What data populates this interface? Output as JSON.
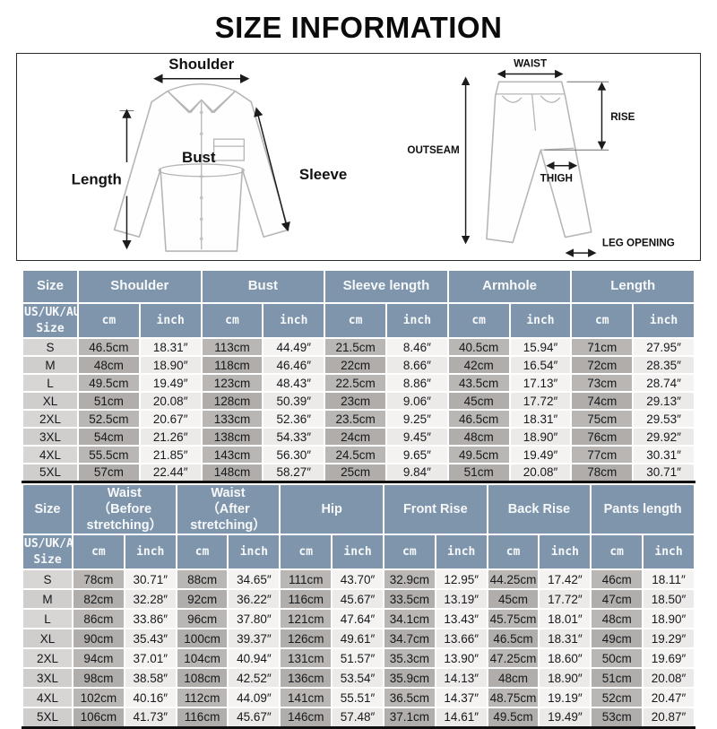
{
  "page": {
    "title": "SIZE INFORMATION"
  },
  "diagram": {
    "shirt": {
      "shoulder": "Shoulder",
      "length": "Length",
      "bust": "Bust",
      "sleeve": "Sleeve"
    },
    "pants": {
      "waist": "WAIST",
      "rise": "RISE",
      "outseam": "OUTSEAM",
      "thigh": "THIGH",
      "leg_opening": "LEG OPENING"
    }
  },
  "top_table": {
    "size_header": "Size",
    "size_subheader": "US/UK/AU Size",
    "unit_cm": "cm",
    "unit_inch": "inch",
    "groups": [
      "Shoulder",
      "Bust",
      "Sleeve length",
      "Armhole",
      "Length"
    ],
    "rows": [
      {
        "size": "S",
        "cells": [
          "46.5cm",
          "18.31″",
          "113cm",
          "44.49″",
          "21.5cm",
          "8.46″",
          "40.5cm",
          "15.94″",
          "71cm",
          "27.95″"
        ]
      },
      {
        "size": "M",
        "cells": [
          "48cm",
          "18.90″",
          "118cm",
          "46.46″",
          "22cm",
          "8.66″",
          "42cm",
          "16.54″",
          "72cm",
          "28.35″"
        ]
      },
      {
        "size": "L",
        "cells": [
          "49.5cm",
          "19.49″",
          "123cm",
          "48.43″",
          "22.5cm",
          "8.86″",
          "43.5cm",
          "17.13″",
          "73cm",
          "28.74″"
        ]
      },
      {
        "size": "XL",
        "cells": [
          "51cm",
          "20.08″",
          "128cm",
          "50.39″",
          "23cm",
          "9.06″",
          "45cm",
          "17.72″",
          "74cm",
          "29.13″"
        ]
      },
      {
        "size": "2XL",
        "cells": [
          "52.5cm",
          "20.67″",
          "133cm",
          "52.36″",
          "23.5cm",
          "9.25″",
          "46.5cm",
          "18.31″",
          "75cm",
          "29.53″"
        ]
      },
      {
        "size": "3XL",
        "cells": [
          "54cm",
          "21.26″",
          "138cm",
          "54.33″",
          "24cm",
          "9.45″",
          "48cm",
          "18.90″",
          "76cm",
          "29.92″"
        ]
      },
      {
        "size": "4XL",
        "cells": [
          "55.5cm",
          "21.85″",
          "143cm",
          "56.30″",
          "24.5cm",
          "9.65″",
          "49.5cm",
          "19.49″",
          "77cm",
          "30.31″"
        ]
      },
      {
        "size": "5XL",
        "cells": [
          "57cm",
          "22.44″",
          "148cm",
          "58.27″",
          "25cm",
          "9.84″",
          "51cm",
          "20.08″",
          "78cm",
          "30.71″"
        ]
      }
    ]
  },
  "bottom_table": {
    "size_header": "Size",
    "size_subheader": "US/UK/AU Size",
    "unit_cm": "cm",
    "unit_inch": "inch",
    "groups": [
      {
        "line1": "Waist",
        "line2": "（Before stretching）"
      },
      {
        "line1": "Waist",
        "line2": "（After stretching）"
      },
      {
        "line1": "Hip",
        "line2": ""
      },
      {
        "line1": "Front Rise",
        "line2": ""
      },
      {
        "line1": "Back Rise",
        "line2": ""
      },
      {
        "line1": "Pants length",
        "line2": ""
      }
    ],
    "rows": [
      {
        "size": "S",
        "cells": [
          "78cm",
          "30.71″",
          "88cm",
          "34.65″",
          "111cm",
          "43.70″",
          "32.9cm",
          "12.95″",
          "44.25cm",
          "17.42″",
          "46cm",
          "18.11″"
        ]
      },
      {
        "size": "M",
        "cells": [
          "82cm",
          "32.28″",
          "92cm",
          "36.22″",
          "116cm",
          "45.67″",
          "33.5cm",
          "13.19″",
          "45cm",
          "17.72″",
          "47cm",
          "18.50″"
        ]
      },
      {
        "size": "L",
        "cells": [
          "86cm",
          "33.86″",
          "96cm",
          "37.80″",
          "121cm",
          "47.64″",
          "34.1cm",
          "13.43″",
          "45.75cm",
          "18.01″",
          "48cm",
          "18.90″"
        ]
      },
      {
        "size": "XL",
        "cells": [
          "90cm",
          "35.43″",
          "100cm",
          "39.37″",
          "126cm",
          "49.61″",
          "34.7cm",
          "13.66″",
          "46.5cm",
          "18.31″",
          "49cm",
          "19.29″"
        ]
      },
      {
        "size": "2XL",
        "cells": [
          "94cm",
          "37.01″",
          "104cm",
          "40.94″",
          "131cm",
          "51.57″",
          "35.3cm",
          "13.90″",
          "47.25cm",
          "18.60″",
          "50cm",
          "19.69″"
        ]
      },
      {
        "size": "3XL",
        "cells": [
          "98cm",
          "38.58″",
          "108cm",
          "42.52″",
          "136cm",
          "53.54″",
          "35.9cm",
          "14.13″",
          "48cm",
          "18.90″",
          "51cm",
          "20.08″"
        ]
      },
      {
        "size": "4XL",
        "cells": [
          "102cm",
          "40.16″",
          "112cm",
          "44.09″",
          "141cm",
          "55.51″",
          "36.5cm",
          "14.37″",
          "48.75cm",
          "19.19″",
          "52cm",
          "20.47″"
        ]
      },
      {
        "size": "5XL",
        "cells": [
          "106cm",
          "41.73″",
          "116cm",
          "45.67″",
          "146cm",
          "57.48″",
          "37.1cm",
          "14.61″",
          "49.5cm",
          "19.49″",
          "53cm",
          "20.87″"
        ]
      }
    ]
  },
  "colors": {
    "header_bg": "#7f95ac",
    "cm_cell_bg": "#bab6b3",
    "inch_cell_bg": "#f4f3f1",
    "size_cell_bg": "#d7d6d5",
    "table_border": "#101010"
  }
}
